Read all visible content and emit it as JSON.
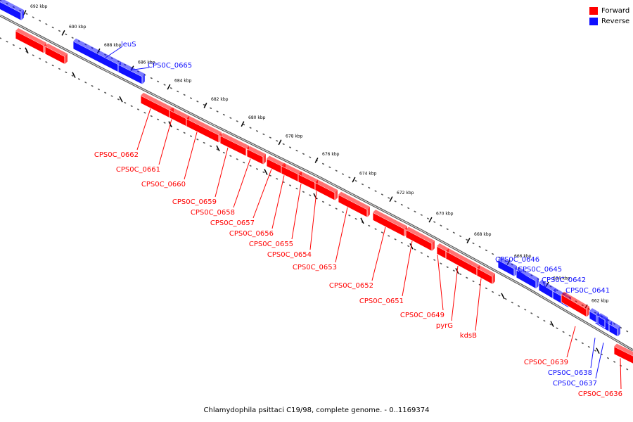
{
  "legend": {
    "forward": "Forward",
    "reverse": "Reverse"
  },
  "colors": {
    "forward": "#ff0000",
    "reverse": "#1010ff",
    "backbone": "#707070"
  },
  "caption": "Chlamydophila psittaci C19/98, complete genome. - 0..1169374",
  "ticks": [
    "692 kbp",
    "690 kbp",
    "688 kbp",
    "686 kbp",
    "684 kbp",
    "682 kbp",
    "680 kbp",
    "678 kbp",
    "676 kbp",
    "674 kbp",
    "672 kbp",
    "670 kbp",
    "668 kbp",
    "666 kbp",
    "664 kbp",
    "662 kbp"
  ],
  "genes": [
    {
      "strand": "reverse",
      "label": ""
    },
    {
      "strand": "forward",
      "label": ""
    },
    {
      "strand": "forward",
      "label": ""
    },
    {
      "strand": "reverse",
      "label": "leuS"
    },
    {
      "strand": "reverse",
      "label": "CPS0C_0665"
    },
    {
      "strand": "forward",
      "label": "CPS0C_0662"
    },
    {
      "strand": "forward",
      "label": "CPS0C_0661"
    },
    {
      "strand": "forward",
      "label": "CPS0C_0660"
    },
    {
      "strand": "forward",
      "label": "CPS0C_0659"
    },
    {
      "strand": "forward",
      "label": "CPS0C_0658"
    },
    {
      "strand": "forward",
      "label": "CPS0C_0657"
    },
    {
      "strand": "forward",
      "label": "CPS0C_0656"
    },
    {
      "strand": "forward",
      "label": "CPS0C_0655"
    },
    {
      "strand": "forward",
      "label": "CPS0C_0654"
    },
    {
      "strand": "forward",
      "label": "CPS0C_0653"
    },
    {
      "strand": "forward",
      "label": "CPS0C_0652"
    },
    {
      "strand": "forward",
      "label": "CPS0C_0651"
    },
    {
      "strand": "forward",
      "label": "CPS0C_0649"
    },
    {
      "strand": "forward",
      "label": "pyrG"
    },
    {
      "strand": "forward",
      "label": "kdsB"
    },
    {
      "strand": "reverse",
      "label": "CPS0C_0646"
    },
    {
      "strand": "reverse",
      "label": "CPS0C_0645"
    },
    {
      "strand": "reverse",
      "label": "CPS0C_0642"
    },
    {
      "strand": "reverse",
      "label": "CPS0C_0641"
    },
    {
      "strand": "reverse",
      "label": ""
    },
    {
      "strand": "reverse",
      "label": ""
    },
    {
      "strand": "forward",
      "label": "CPS0C_0639"
    },
    {
      "strand": "reverse",
      "label": "CPS0C_0638"
    },
    {
      "strand": "reverse",
      "label": "CPS0C_0637"
    },
    {
      "strand": "forward",
      "label": "CPS0C_0636"
    }
  ]
}
